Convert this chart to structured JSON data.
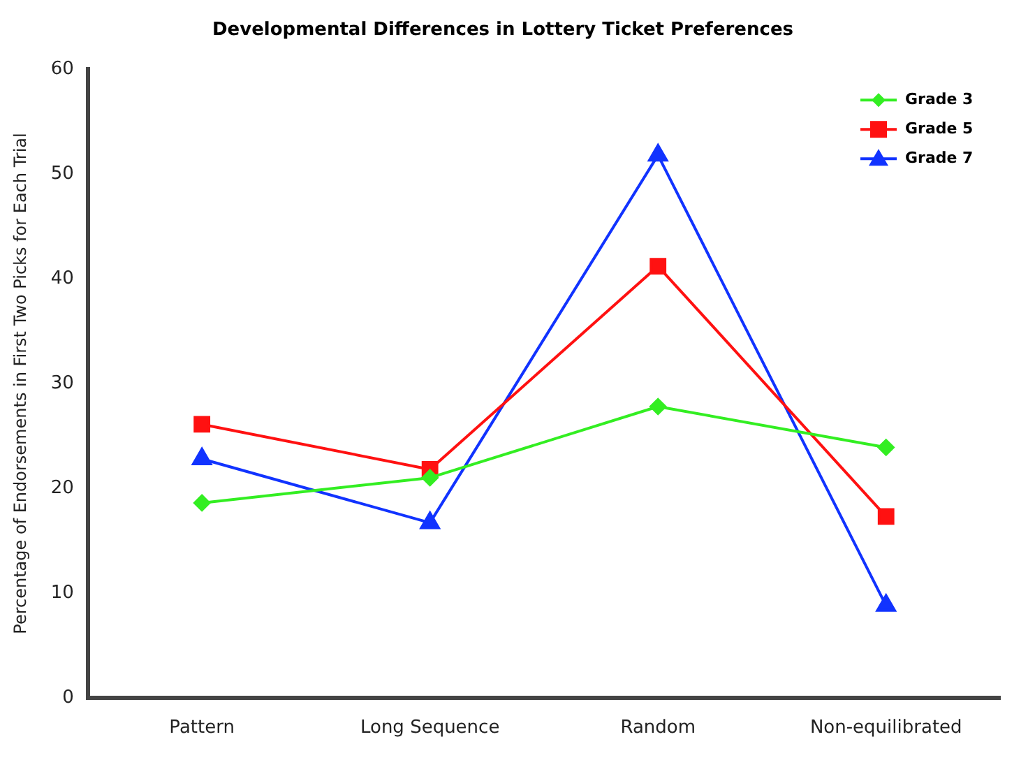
{
  "chart_data": {
    "type": "line",
    "title": "Developmental Differences in Lottery Ticket Preferences",
    "ylabel": "Percentage of Endorsements in First Two Picks for Each Trial",
    "categories": [
      "Pattern",
      "Long Sequence",
      "Random",
      "Non-equilibrated"
    ],
    "series": [
      {
        "name": "Grade 3",
        "color": "#33ee22",
        "marker": "diamond",
        "values": [
          18.6,
          21,
          27.8,
          23.9
        ]
      },
      {
        "name": "Grade 5",
        "color": "#ff1111",
        "marker": "square",
        "values": [
          26.1,
          21.8,
          41.2,
          17.3
        ]
      },
      {
        "name": "Grade 7",
        "color": "#1133ff",
        "marker": "triangle",
        "values": [
          22.8,
          16.7,
          51.8,
          8.8
        ]
      }
    ],
    "ylim": [
      0,
      60
    ],
    "yticks": [
      0,
      10,
      20,
      30,
      40,
      50,
      60
    ],
    "grid": false,
    "legend": "top right",
    "line_style": "solid"
  }
}
